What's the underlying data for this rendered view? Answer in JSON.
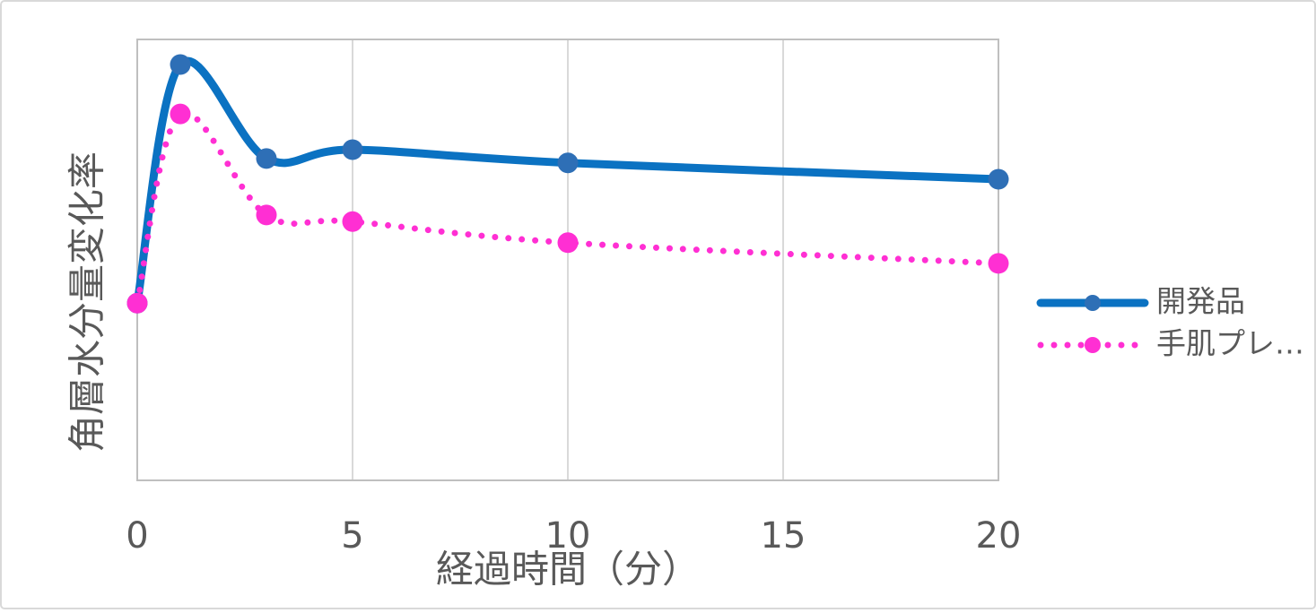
{
  "chart_data": {
    "type": "line",
    "x_label": "経過時間（分）",
    "y_label": "角層水分量変化率",
    "x": [
      0,
      1,
      3,
      5,
      10,
      20
    ],
    "xlim": [
      0,
      20
    ],
    "xticks": [
      0,
      5,
      10,
      15,
      20
    ],
    "ylim": [
      0,
      100
    ],
    "grid": true,
    "smooth": true,
    "legend": "right",
    "series": [
      {
        "name": "開発品",
        "color": "#0b72c2",
        "marker_color": "#2e6fb6",
        "style": "solid",
        "values": [
          40.2,
          94.3,
          73.0,
          75.0,
          72.0,
          68.3
        ]
      },
      {
        "name": "手肌プレ…",
        "color": "#ff2fd3",
        "marker_color": "#ff2fd3",
        "style": "dotted",
        "values": [
          40.2,
          83.1,
          60.2,
          58.7,
          53.9,
          49.2
        ]
      }
    ]
  }
}
